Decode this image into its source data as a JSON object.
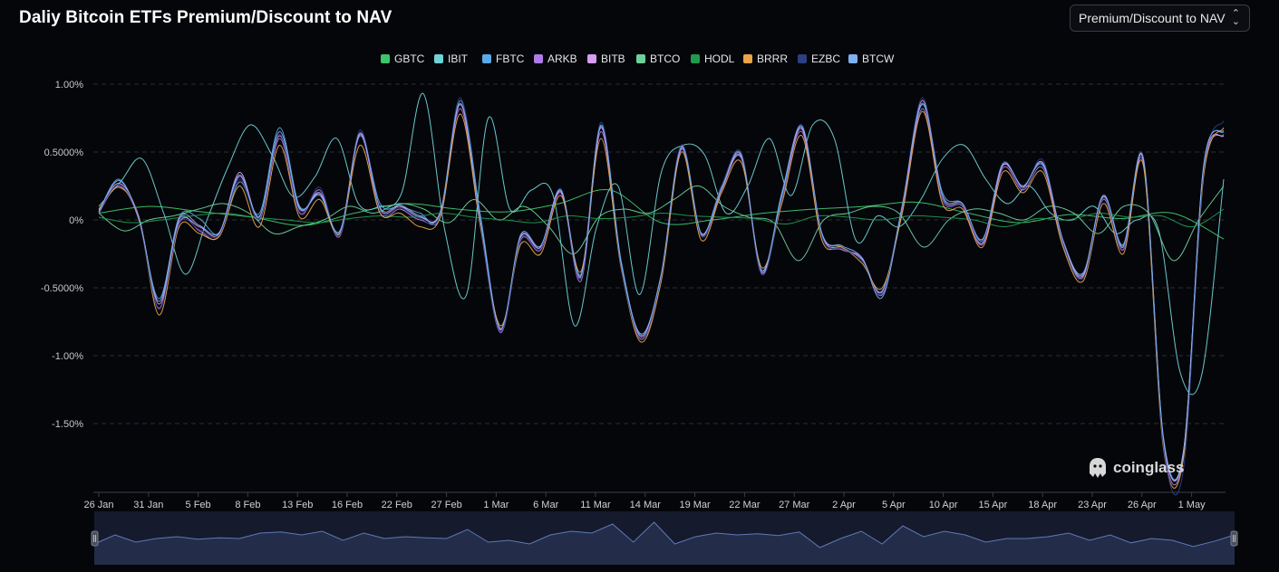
{
  "title": "Daliy Bitcoin ETFs Premium/Discount to NAV",
  "dropdown": {
    "selected": "Premium/Discount to NAV",
    "icon": "chevron-up-down-icon"
  },
  "watermark": "coinglass",
  "chart_data": {
    "type": "line",
    "title": "Daliy Bitcoin ETFs Premium/Discount to NAV",
    "xlabel": "",
    "ylabel": "",
    "ylim": [
      -2.0,
      1.0
    ],
    "ytick_values": [
      1.0,
      0.5,
      0,
      -0.5,
      -1.0,
      -1.5
    ],
    "ytick_labels": [
      "1.00%",
      "0.5000%",
      "0%",
      "-0.5000%",
      "-1.00%",
      "-1.50%"
    ],
    "xtick_labels": [
      "26 Jan",
      "31 Jan",
      "5 Feb",
      "8 Feb",
      "13 Feb",
      "16 Feb",
      "22 Feb",
      "27 Feb",
      "1 Mar",
      "6 Mar",
      "11 Mar",
      "14 Mar",
      "19 Mar",
      "22 Mar",
      "27 Mar",
      "2 Apr",
      "5 Apr",
      "10 Apr",
      "15 Apr",
      "18 Apr",
      "23 Apr",
      "26 Apr",
      "1 May"
    ],
    "grid": true,
    "legend_position": "top-center",
    "series": [
      {
        "name": "GBTC",
        "color": "#3ec46d",
        "values": [
          0.05,
          0.1,
          0.06,
          0.02,
          -0.04,
          0.05,
          0.12,
          0.08,
          0.06,
          0.12,
          0.22,
          -0.02,
          0.0,
          0.05,
          0.08,
          0.1,
          0.13,
          0.05,
          -0.02,
          0.04,
          0.01,
          0.05,
          -0.14
        ]
      },
      {
        "name": "IBIT",
        "color": "#6fd3d6",
        "values": [
          0.1,
          0.28,
          0.45,
          0.05,
          -0.4,
          0.0,
          0.4,
          0.7,
          0.48,
          0.17,
          0.32,
          0.6,
          0.12,
          0.1,
          0.2,
          0.93,
          -0.08,
          -0.55,
          0.75,
          0.08,
          0.22,
          0.18,
          -0.78,
          -0.06,
          0.25,
          -0.55,
          0.35,
          0.55,
          0.48,
          0.05,
          0.25,
          0.6,
          0.18,
          0.7,
          0.6,
          -0.15,
          0.03,
          -0.05,
          0.15,
          0.45,
          0.55,
          0.3,
          0.12,
          0.25,
          0.05,
          0.0,
          0.1,
          -0.1,
          0.0,
          -0.08,
          -1.13,
          -1.13,
          0.3
        ]
      },
      {
        "name": "FBTC",
        "color": "#5aa9e6",
        "values": [
          0.06,
          0.3,
          0.0,
          -0.58,
          0.02,
          0.01,
          -0.1,
          0.28,
          0.05,
          0.68,
          0.1,
          0.18,
          -0.08,
          0.62,
          0.12,
          0.1,
          0.05,
          0.02,
          0.88,
          0.03,
          -0.8,
          -0.12,
          -0.2,
          0.22,
          -0.4,
          0.7,
          -0.3,
          -0.85,
          -0.4,
          0.55,
          -0.1,
          0.25,
          0.48,
          -0.38,
          0.2,
          0.68,
          -0.1,
          -0.2,
          -0.3,
          -0.52,
          0.1,
          0.85,
          0.2,
          0.12,
          -0.15,
          0.4,
          0.25,
          0.4,
          -0.15,
          -0.4,
          0.18,
          -0.18,
          0.45,
          -1.6,
          -1.7,
          0.4,
          0.65
        ]
      },
      {
        "name": "ARKB",
        "color": "#b07ae8",
        "values": [
          0.05,
          0.25,
          0.0,
          -0.65,
          0.0,
          -0.08,
          -0.12,
          0.32,
          0.0,
          0.6,
          0.05,
          0.22,
          -0.12,
          0.62,
          0.05,
          0.08,
          0.0,
          0.05,
          0.82,
          -0.05,
          -0.83,
          -0.15,
          -0.22,
          0.2,
          -0.45,
          0.65,
          -0.35,
          -0.88,
          -0.43,
          0.52,
          -0.12,
          0.22,
          0.45,
          -0.4,
          0.15,
          0.65,
          -0.12,
          -0.22,
          -0.28,
          -0.55,
          0.08,
          0.82,
          0.15,
          0.1,
          -0.18,
          0.38,
          0.22,
          0.38,
          -0.18,
          -0.42,
          0.15,
          -0.22,
          0.42,
          -1.65,
          -1.73,
          0.35,
          0.63
        ]
      },
      {
        "name": "BITB",
        "color": "#d69ef0",
        "values": [
          0.07,
          0.27,
          0.02,
          -0.62,
          -0.02,
          -0.05,
          -0.1,
          0.35,
          0.02,
          0.62,
          0.08,
          0.2,
          -0.1,
          0.64,
          0.08,
          0.1,
          0.02,
          0.06,
          0.85,
          -0.02,
          -0.81,
          -0.13,
          -0.2,
          0.21,
          -0.42,
          0.68,
          -0.33,
          -0.86,
          -0.41,
          0.54,
          -0.11,
          0.24,
          0.47,
          -0.39,
          0.17,
          0.67,
          -0.11,
          -0.21,
          -0.29,
          -0.53,
          0.09,
          0.88,
          0.17,
          0.11,
          -0.17,
          0.4,
          0.24,
          0.42,
          -0.16,
          -0.41,
          0.17,
          -0.2,
          0.44,
          -1.62,
          -1.7,
          0.38,
          0.62
        ]
      },
      {
        "name": "BTCO",
        "color": "#6cd09a",
        "values": [
          0.05,
          -0.08,
          0.0,
          0.03,
          0.08,
          0.12,
          0.05,
          -0.1,
          -0.05,
          0.0,
          0.1,
          0.05,
          0.12,
          0.08,
          -0.02,
          0.15,
          0.0,
          0.1,
          -0.05,
          -0.25,
          0.02,
          0.08,
          0.05,
          0.15,
          0.25,
          0.1,
          0.02,
          -0.02,
          -0.3,
          0.0,
          0.05,
          0.1,
          0.05,
          -0.2,
          0.0,
          0.08,
          0.05,
          0.0,
          0.1,
          0.05,
          -0.1,
          0.1,
          0.05,
          -0.3,
          0.0,
          0.25
        ]
      },
      {
        "name": "HODL",
        "color": "#1f9a4e",
        "values": [
          0.02,
          -0.02,
          0.0,
          0.03,
          0.05,
          0.02,
          0.0,
          -0.02,
          0.01,
          0.03,
          0.02,
          0.05,
          0.02,
          0.0,
          -0.02,
          0.03,
          0.01,
          0.02,
          0.05,
          0.03,
          0.02,
          0.01,
          -0.03,
          0.03,
          0.02,
          0.0,
          0.03,
          0.02,
          0.0,
          -0.05,
          0.01,
          0.0,
          0.05,
          0.02,
          0.03,
          -0.05,
          0.08
        ]
      },
      {
        "name": "BRRR",
        "color": "#e9a548",
        "values": [
          0.08,
          0.24,
          0.02,
          -0.7,
          -0.05,
          -0.1,
          -0.12,
          0.25,
          -0.05,
          0.55,
          0.02,
          0.15,
          -0.1,
          0.55,
          0.05,
          0.05,
          -0.05,
          0.02,
          0.78,
          -0.05,
          -0.78,
          -0.18,
          -0.25,
          0.18,
          -0.38,
          0.6,
          -0.35,
          -0.9,
          -0.45,
          0.5,
          -0.15,
          0.2,
          0.42,
          -0.35,
          0.12,
          0.62,
          -0.15,
          -0.2,
          -0.32,
          -0.5,
          0.05,
          0.8,
          0.12,
          0.08,
          -0.2,
          0.35,
          0.2,
          0.35,
          -0.2,
          -0.45,
          0.12,
          -0.25,
          0.4,
          -1.68,
          -1.75,
          0.32,
          0.68
        ]
      },
      {
        "name": "EZBC",
        "color": "#2c3f82",
        "values": [
          0.06,
          0.26,
          0.01,
          -0.66,
          -0.03,
          -0.07,
          -0.11,
          0.3,
          0.01,
          0.63,
          0.06,
          0.24,
          -0.11,
          0.66,
          0.07,
          0.09,
          0.01,
          0.04,
          0.9,
          -0.03,
          -0.82,
          -0.14,
          -0.21,
          0.23,
          -0.43,
          0.72,
          -0.34,
          -0.87,
          -0.42,
          0.55,
          -0.12,
          0.25,
          0.49,
          -0.4,
          0.16,
          0.7,
          -0.12,
          -0.21,
          -0.3,
          -0.54,
          0.1,
          0.9,
          0.16,
          0.11,
          -0.16,
          0.42,
          0.23,
          0.44,
          -0.17,
          -0.43,
          0.16,
          -0.21,
          0.46,
          -1.66,
          -1.83,
          0.36,
          0.73
        ]
      },
      {
        "name": "BTCW",
        "color": "#7fb0f0",
        "values": [
          0.06,
          0.29,
          0.01,
          -0.6,
          0.01,
          -0.04,
          -0.09,
          0.33,
          0.03,
          0.65,
          0.09,
          0.19,
          -0.09,
          0.63,
          0.09,
          0.11,
          0.03,
          0.05,
          0.86,
          -0.01,
          -0.8,
          -0.11,
          -0.19,
          0.22,
          -0.41,
          0.69,
          -0.32,
          -0.84,
          -0.4,
          0.53,
          -0.1,
          0.23,
          0.46,
          -0.37,
          0.18,
          0.69,
          -0.1,
          -0.19,
          -0.28,
          -0.57,
          0.11,
          0.86,
          0.18,
          0.12,
          -0.14,
          0.41,
          0.25,
          0.41,
          -0.15,
          -0.39,
          0.18,
          -0.19,
          0.45,
          -1.61,
          -1.71,
          0.39,
          0.66
        ]
      }
    ],
    "navigator_values": [
      0.05,
      0.3,
      0.1,
      0.2,
      0.25,
      0.18,
      0.22,
      0.2,
      0.35,
      0.38,
      0.3,
      0.4,
      0.15,
      0.35,
      0.2,
      0.25,
      0.22,
      0.2,
      0.45,
      0.1,
      0.15,
      0.05,
      0.3,
      0.4,
      0.35,
      0.6,
      0.1,
      0.65,
      0.05,
      0.25,
      0.35,
      0.3,
      0.33,
      0.28,
      0.38,
      -0.05,
      0.2,
      0.4,
      0.05,
      0.55,
      0.25,
      0.4,
      0.3,
      0.1,
      0.2,
      0.2,
      0.25,
      0.35,
      0.15,
      0.3,
      0.08,
      0.2,
      0.15,
      -0.02,
      0.12,
      0.3
    ]
  }
}
